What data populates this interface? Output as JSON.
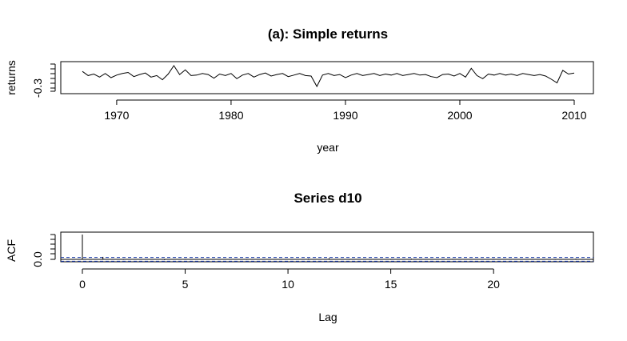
{
  "chart_data": [
    {
      "type": "line",
      "title": "(a): Simple returns",
      "xlabel": "year",
      "ylabel": "returns",
      "xlim": [
        1967,
        2010
      ],
      "ylim": [
        -0.3,
        0.1
      ],
      "x_ticks": [
        1970,
        1980,
        1990,
        2000,
        2010
      ],
      "x_tick_labels": [
        "1970",
        "1980",
        "1990",
        "2000",
        "2010"
      ],
      "y_ticks": [
        -0.3
      ],
      "y_tick_labels": [
        "-0.3"
      ],
      "series": [
        {
          "x": [
            1967.0,
            1967.5,
            1968.0,
            1968.5,
            1969.0,
            1969.5,
            1970.0,
            1970.5,
            1971.0,
            1971.5,
            1972.0,
            1972.5,
            1973.0,
            1973.5,
            1974.0,
            1974.5,
            1975.0,
            1975.5,
            1976.0,
            1976.5,
            1977.0,
            1977.5,
            1978.0,
            1978.5,
            1979.0,
            1979.5,
            1980.0,
            1980.5,
            1981.0,
            1981.5,
            1982.0,
            1982.5,
            1983.0,
            1983.5,
            1984.0,
            1984.5,
            1985.0,
            1985.5,
            1986.0,
            1986.5,
            1987.0,
            1987.5,
            1988.0,
            1988.5,
            1989.0,
            1989.5,
            1990.0,
            1990.5,
            1991.0,
            1991.5,
            1992.0,
            1992.5,
            1993.0,
            1993.5,
            1994.0,
            1994.5,
            1995.0,
            1995.5,
            1996.0,
            1996.5,
            1997.0,
            1997.5,
            1998.0,
            1998.5,
            1999.0,
            1999.5,
            2000.0,
            2000.5,
            2001.0,
            2001.5,
            2002.0,
            2002.5,
            2003.0,
            2003.5,
            2004.0,
            2004.5,
            2005.0,
            2005.5,
            2006.0,
            2006.5,
            2007.0,
            2007.5,
            2008.0,
            2008.5,
            2009.0,
            2009.5,
            2010.0
          ],
          "values": [
            0.02,
            -0.06,
            -0.03,
            -0.09,
            -0.02,
            -0.1,
            -0.05,
            -0.02,
            0.0,
            -0.08,
            -0.04,
            -0.01,
            -0.09,
            -0.06,
            -0.14,
            -0.03,
            0.13,
            -0.04,
            0.05,
            -0.06,
            -0.05,
            -0.02,
            -0.04,
            -0.11,
            -0.03,
            -0.06,
            -0.02,
            -0.12,
            -0.05,
            -0.02,
            -0.09,
            -0.04,
            -0.01,
            -0.07,
            -0.04,
            -0.02,
            -0.08,
            -0.05,
            -0.02,
            -0.06,
            -0.07,
            -0.27,
            -0.05,
            -0.02,
            -0.06,
            -0.04,
            -0.1,
            -0.05,
            -0.02,
            -0.06,
            -0.04,
            -0.02,
            -0.06,
            -0.03,
            -0.05,
            -0.02,
            -0.06,
            -0.04,
            -0.02,
            -0.05,
            -0.04,
            -0.08,
            -0.1,
            -0.04,
            -0.03,
            -0.07,
            -0.02,
            -0.09,
            0.08,
            -0.06,
            -0.12,
            -0.03,
            -0.05,
            -0.02,
            -0.05,
            -0.03,
            -0.06,
            -0.02,
            -0.04,
            -0.06,
            -0.04,
            -0.07,
            -0.13,
            -0.2,
            0.04,
            -0.03,
            -0.01
          ]
        }
      ],
      "grid": false,
      "legend": "none"
    },
    {
      "type": "bar",
      "title": "Series  d10",
      "xlabel": "Lag",
      "ylabel": "ACF",
      "xlim": [
        0,
        24
      ],
      "ylim": [
        -0.05,
        1.0
      ],
      "x_ticks": [
        0,
        5,
        10,
        15,
        20
      ],
      "x_tick_labels": [
        "0",
        "5",
        "10",
        "15",
        "20"
      ],
      "y_ticks": [
        0.0
      ],
      "y_tick_labels": [
        "0.0"
      ],
      "lags": [
        0,
        1,
        2,
        3,
        4,
        5,
        6,
        7,
        8,
        9,
        10,
        11,
        12,
        13,
        14,
        15,
        16,
        17,
        18,
        19,
        20,
        21,
        22,
        23,
        24
      ],
      "values": [
        1.0,
        0.1,
        -0.02,
        0.01,
        -0.03,
        0.02,
        -0.01,
        0.01,
        -0.02,
        0.01,
        -0.01,
        0.03,
        0.05,
        -0.02,
        0.01,
        -0.02,
        0.03,
        -0.01,
        0.02,
        -0.01,
        0.02,
        -0.01,
        0.01,
        -0.02,
        0.03
      ],
      "confidence_bound": 0.075,
      "grid": false,
      "legend": "none"
    }
  ]
}
